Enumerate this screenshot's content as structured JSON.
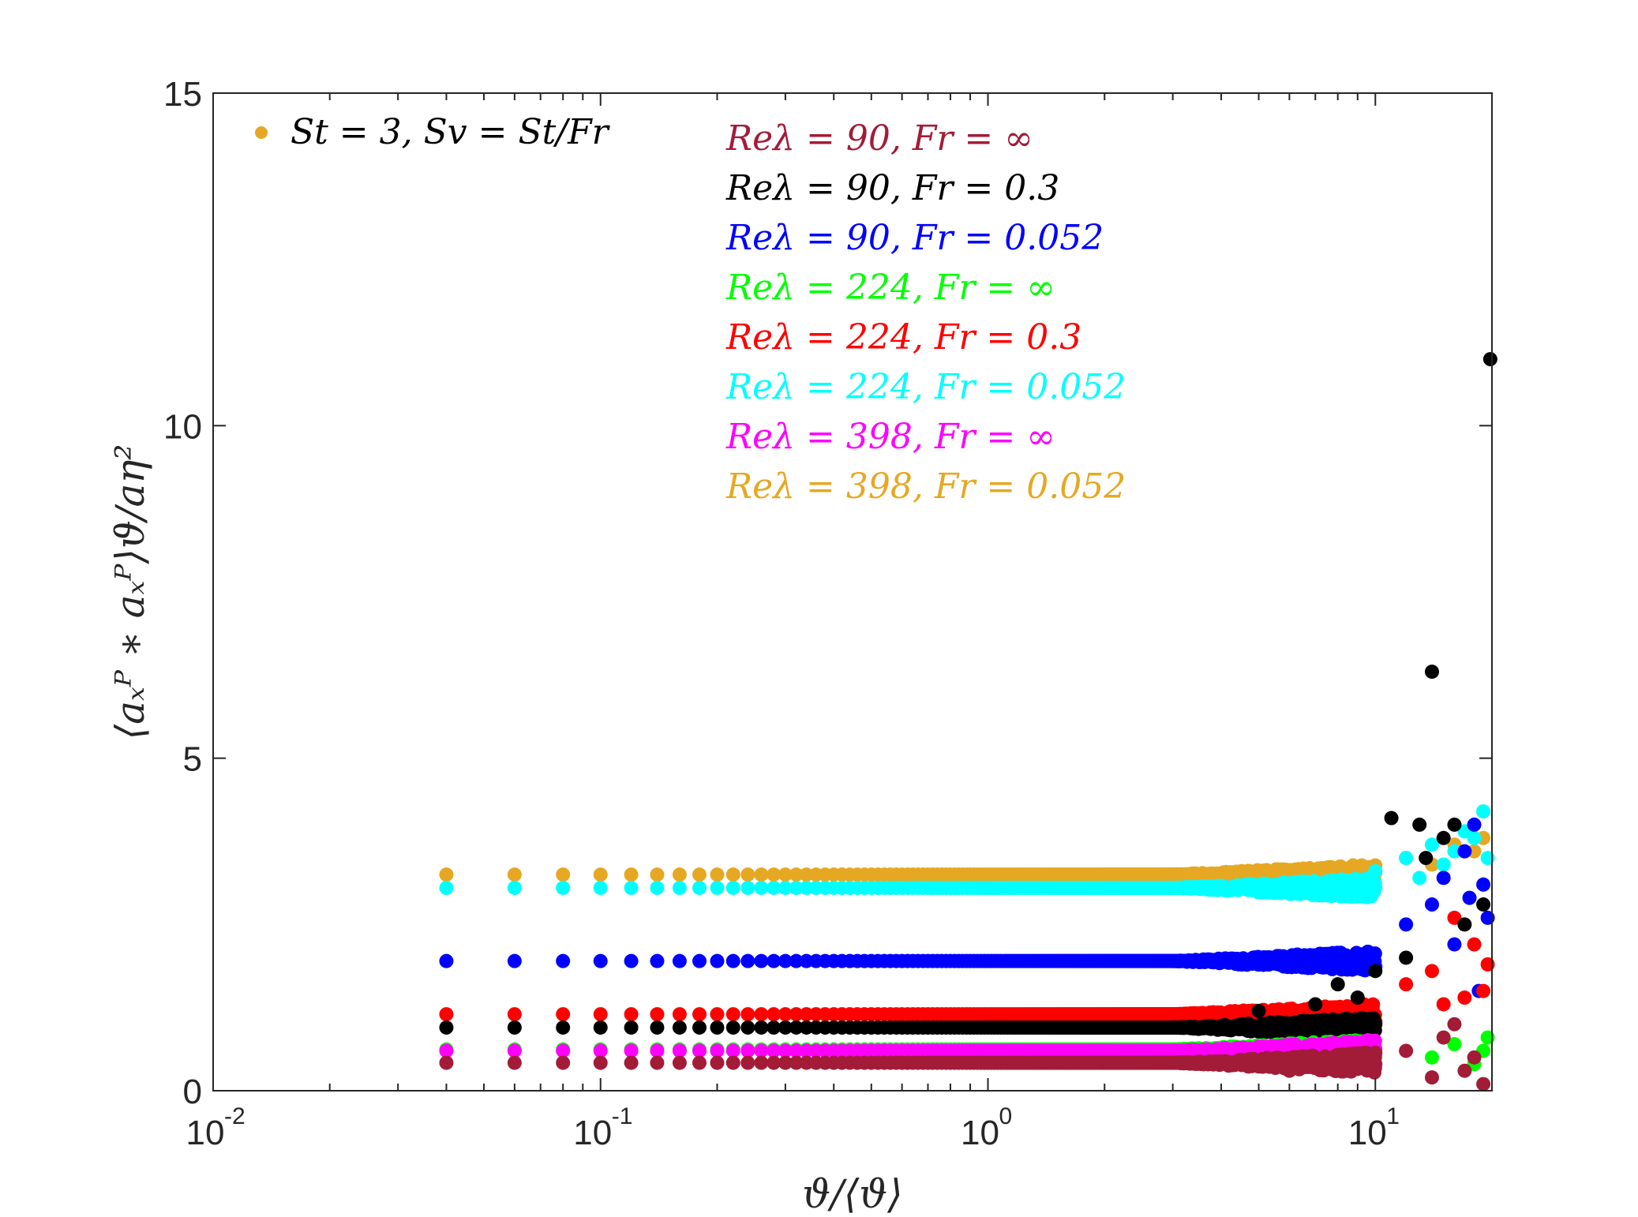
{
  "chart_data": {
    "type": "scatter",
    "title": "",
    "xlabel": "ϑ/⟨ϑ⟩",
    "ylabel": "⟨aₓᴾ ∗ aₓᴾ⟩ϑ/aη²",
    "xscale": "log",
    "xlim": [
      0.01,
      20
    ],
    "ylim": [
      0,
      15
    ],
    "x_ticks": [
      {
        "value": 0.01,
        "base": "10",
        "exp": "-2"
      },
      {
        "value": 0.1,
        "base": "10",
        "exp": "-1"
      },
      {
        "value": 1,
        "base": "10",
        "exp": "0"
      },
      {
        "value": 10,
        "base": "10",
        "exp": "1"
      }
    ],
    "y_ticks": [
      {
        "value": 0,
        "label": "0"
      },
      {
        "value": 5,
        "label": "5"
      },
      {
        "value": 10,
        "label": "10"
      },
      {
        "value": 15,
        "label": "15"
      }
    ],
    "grid": false,
    "legend_position": "top-center",
    "annotation": {
      "text": "St = 3, Sv = St/Fr",
      "color": "#E6A823",
      "position": "top-left"
    },
    "series": [
      {
        "name": "Reλ = 90, Fr = ∞",
        "color": "#A21C38",
        "level": 0.42,
        "points": [
          [
            6,
            0.3
          ],
          [
            8,
            0.5
          ],
          [
            10,
            0.4
          ],
          [
            12,
            0.6
          ],
          [
            14,
            0.2
          ],
          [
            15,
            0.8
          ],
          [
            17,
            0.3
          ],
          [
            18,
            0.5
          ],
          [
            19,
            0.1
          ],
          [
            16,
            1.0
          ]
        ]
      },
      {
        "name": "Reλ = 90, Fr = 0.3",
        "color": "#000000",
        "level": 0.95,
        "points": [
          [
            5,
            1.2
          ],
          [
            7,
            1.3
          ],
          [
            8,
            1.6
          ],
          [
            9,
            1.4
          ],
          [
            10,
            1.8
          ],
          [
            11,
            4.1
          ],
          [
            12,
            2.0
          ],
          [
            13,
            4.0
          ],
          [
            14,
            6.3
          ],
          [
            15,
            3.8
          ],
          [
            16,
            4.0
          ],
          [
            17,
            2.5
          ],
          [
            19.8,
            11.0
          ],
          [
            19,
            2.8
          ],
          [
            13.5,
            3.5
          ]
        ]
      },
      {
        "name": "Reλ = 90, Fr = 0.052",
        "color": "#0000FF",
        "level": 1.95,
        "points": [
          [
            12,
            2.5
          ],
          [
            14,
            2.8
          ],
          [
            15,
            3.2
          ],
          [
            16,
            2.2
          ],
          [
            17,
            3.6
          ],
          [
            18,
            4.0
          ],
          [
            19,
            3.1
          ],
          [
            19.5,
            2.6
          ],
          [
            18.5,
            1.5
          ],
          [
            17.5,
            2.9
          ]
        ]
      },
      {
        "name": "Reλ = 224, Fr = ∞",
        "color": "#00FF00",
        "level": 0.62,
        "points": [
          [
            14,
            0.5
          ],
          [
            16,
            0.7
          ],
          [
            18,
            0.4
          ],
          [
            19,
            0.6
          ],
          [
            19.5,
            0.8
          ]
        ]
      },
      {
        "name": "Reλ = 224, Fr = 0.3",
        "color": "#FF0000",
        "level": 1.15,
        "points": [
          [
            12,
            1.6
          ],
          [
            14,
            1.8
          ],
          [
            15,
            1.3
          ],
          [
            16,
            2.6
          ],
          [
            17,
            1.4
          ],
          [
            18,
            2.2
          ],
          [
            19,
            1.5
          ],
          [
            19.5,
            1.9
          ]
        ]
      },
      {
        "name": "Reλ = 224, Fr = 0.052",
        "color": "#00FFFF",
        "level": 3.05,
        "points": [
          [
            10,
            3.3
          ],
          [
            12,
            3.5
          ],
          [
            14,
            3.7
          ],
          [
            16,
            3.6
          ],
          [
            17,
            3.9
          ],
          [
            18,
            3.8
          ],
          [
            19,
            4.2
          ],
          [
            19.5,
            3.5
          ],
          [
            15,
            3.4
          ],
          [
            13,
            3.2
          ]
        ]
      },
      {
        "name": "Reλ = 398, Fr = ∞",
        "color": "#FF00FF",
        "level": 0.6,
        "points": []
      },
      {
        "name": "Reλ = 398, Fr = 0.052",
        "color": "#E6A823",
        "level": 3.25,
        "points": [
          [
            12,
            3.5
          ],
          [
            14,
            3.4
          ],
          [
            16,
            3.7
          ],
          [
            18,
            3.6
          ],
          [
            19,
            3.8
          ]
        ]
      }
    ]
  }
}
